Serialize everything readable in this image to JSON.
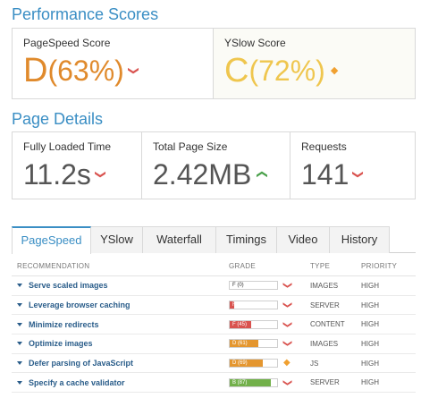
{
  "performance": {
    "title": "Performance Scores",
    "pagespeed": {
      "label": "PageSpeed Score",
      "grade": "D",
      "percent": "(63%)",
      "trend": "down"
    },
    "yslow": {
      "label": "YSlow Score",
      "grade": "C",
      "percent": "(72%)",
      "trend": "neutral"
    }
  },
  "details": {
    "title": "Page Details",
    "loaded": {
      "label": "Fully Loaded Time",
      "value": "11.2s",
      "trend": "down"
    },
    "size": {
      "label": "Total Page Size",
      "value": "2.42MB",
      "trend": "up"
    },
    "requests": {
      "label": "Requests",
      "value": "141",
      "trend": "down"
    }
  },
  "tabs": [
    {
      "label": "PageSpeed",
      "active": true
    },
    {
      "label": "YSlow",
      "active": false
    },
    {
      "label": "Waterfall",
      "active": false
    },
    {
      "label": "Timings",
      "active": false
    },
    {
      "label": "Video",
      "active": false
    },
    {
      "label": "History",
      "active": false
    }
  ],
  "table": {
    "headers": {
      "recommendation": "RECOMMENDATION",
      "grade": "GRADE",
      "type": "TYPE",
      "priority": "PRIORITY"
    },
    "rows": [
      {
        "recommendation": "Serve scaled images",
        "grade_label": "F (0)",
        "score": 0,
        "color": "#d9534f",
        "trend": "down",
        "type": "IMAGES",
        "priority": "HIGH"
      },
      {
        "recommendation": "Leverage browser caching",
        "grade_label": "F (9)",
        "score": 9,
        "color": "#d9534f",
        "trend": "down",
        "type": "SERVER",
        "priority": "HIGH"
      },
      {
        "recommendation": "Minimize redirects",
        "grade_label": "F (45)",
        "score": 45,
        "color": "#d9534f",
        "trend": "down",
        "type": "CONTENT",
        "priority": "HIGH"
      },
      {
        "recommendation": "Optimize images",
        "grade_label": "D (61)",
        "score": 61,
        "color": "#e4962f",
        "trend": "down",
        "type": "IMAGES",
        "priority": "HIGH"
      },
      {
        "recommendation": "Defer parsing of JavaScript",
        "grade_label": "D (69)",
        "score": 69,
        "color": "#e4962f",
        "trend": "neutral",
        "type": "JS",
        "priority": "HIGH"
      },
      {
        "recommendation": "Specify a cache validator",
        "grade_label": "B (87)",
        "score": 87,
        "color": "#72b04a",
        "trend": "down",
        "type": "SERVER",
        "priority": "HIGH"
      }
    ]
  },
  "colors": {
    "accent": "#3a8ec4",
    "bad": "#d9534f",
    "good": "#49a04a",
    "warn": "#f0a030"
  }
}
